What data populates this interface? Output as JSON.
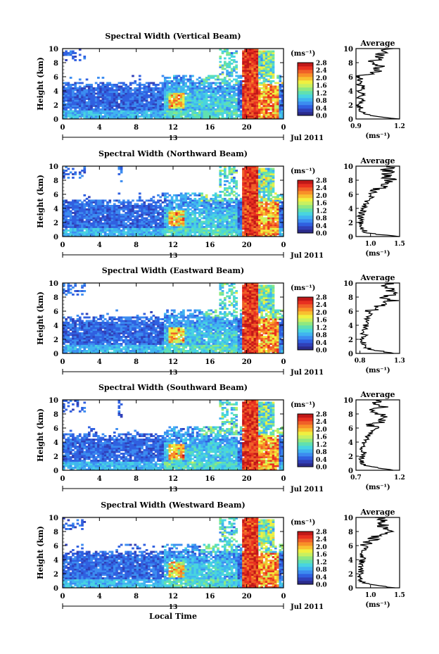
{
  "page": {
    "xlabel": "Local Time",
    "date_label": "Jul 2011",
    "day_label": "13",
    "colorbar_unit": "(ms⁻¹)",
    "avg_title": "Average",
    "avg_xlabel": "(ms⁻¹)"
  },
  "colormap": [
    "#2b2b8a",
    "#3040b8",
    "#3060e0",
    "#3c8cf0",
    "#40b4f0",
    "#48d4e0",
    "#60e0b0",
    "#90e880",
    "#c8f060",
    "#f0f040",
    "#f8c030",
    "#f89028",
    "#f06028",
    "#e83020",
    "#c01818"
  ],
  "chart_data": [
    {
      "type": "heatmap",
      "title": "Spectral Width (Vertical Beam)",
      "xlabel": "",
      "ylabel": "Height (km)",
      "x_ticks": [
        "0",
        "4",
        "8",
        "12",
        "16",
        "20",
        "0"
      ],
      "xlim": [
        0,
        24
      ],
      "ylim": [
        0,
        10
      ],
      "y_ticks": [
        "0",
        "2",
        "4",
        "6",
        "8",
        "10"
      ],
      "colorbar": {
        "ticks": [
          "2.8",
          "2.4",
          "2.0",
          "1.6",
          "1.2",
          "0.8",
          "0.4",
          "0.0"
        ],
        "range": [
          0.0,
          2.8
        ]
      },
      "average_profile": {
        "xlim": [
          0.9,
          1.2
        ],
        "x_ticks": [
          "0.9",
          "1.2"
        ],
        "heights": [
          0,
          0.5,
          1,
          1.5,
          2,
          2.5,
          3,
          3.5,
          4,
          4.5,
          5,
          5.5,
          6,
          6.5,
          7,
          7.5,
          8,
          8.5,
          9,
          9.5,
          10
        ],
        "values": [
          1.2,
          1.0,
          0.94,
          0.93,
          0.92,
          0.95,
          0.92,
          0.95,
          0.93,
          0.96,
          0.92,
          0.93,
          0.92,
          1.0,
          1.05,
          1.1,
          0.98,
          1.08,
          1.05,
          1.1,
          1.12
        ]
      }
    },
    {
      "type": "heatmap",
      "title": "Spectral Width (Northward Beam)",
      "xlabel": "",
      "ylabel": "Height (km)",
      "x_ticks": [
        "0",
        "4",
        "8",
        "12",
        "16",
        "20",
        "0"
      ],
      "xlim": [
        0,
        24
      ],
      "ylim": [
        0,
        10
      ],
      "y_ticks": [
        "0",
        "2",
        "4",
        "6",
        "8",
        "10"
      ],
      "colorbar": {
        "ticks": [
          "2.8",
          "2.4",
          "2.0",
          "1.6",
          "1.2",
          "0.8",
          "0.4",
          "0.0"
        ],
        "range": [
          0.0,
          2.8
        ]
      },
      "average_profile": {
        "xlim": [
          0.75,
          1.5
        ],
        "x_ticks": [
          "1.0",
          "1.5"
        ],
        "heights": [
          0,
          0.5,
          1,
          1.5,
          2,
          2.5,
          3,
          3.5,
          4,
          4.5,
          5,
          5.5,
          6,
          6.5,
          7,
          7.5,
          8,
          8.5,
          9,
          9.5,
          10
        ],
        "values": [
          1.45,
          0.95,
          0.85,
          0.82,
          0.82,
          0.84,
          0.83,
          0.86,
          0.88,
          0.92,
          0.95,
          1.0,
          1.05,
          1.1,
          1.2,
          1.3,
          1.35,
          1.25,
          1.3,
          1.28,
          1.3
        ]
      }
    },
    {
      "type": "heatmap",
      "title": "Spectral Width (Eastward Beam)",
      "xlabel": "",
      "ylabel": "Height (km)",
      "x_ticks": [
        "0",
        "4",
        "8",
        "12",
        "16",
        "20",
        "0"
      ],
      "xlim": [
        0,
        24
      ],
      "ylim": [
        0,
        10
      ],
      "y_ticks": [
        "0",
        "2",
        "4",
        "6",
        "8",
        "10"
      ],
      "colorbar": {
        "ticks": [
          "2.8",
          "2.4",
          "2.0",
          "1.6",
          "1.2",
          "0.8",
          "0.4",
          "0.0"
        ],
        "range": [
          0.0,
          2.8
        ]
      },
      "average_profile": {
        "xlim": [
          0.75,
          1.3
        ],
        "x_ticks": [
          "0.8",
          "1.3"
        ],
        "heights": [
          0,
          0.5,
          1,
          1.5,
          2,
          2.5,
          3,
          3.5,
          4,
          4.5,
          5,
          5.5,
          6,
          6.5,
          7,
          7.5,
          8,
          8.5,
          9,
          9.5,
          10
        ],
        "values": [
          1.25,
          0.95,
          0.85,
          0.84,
          0.83,
          0.86,
          0.84,
          0.88,
          0.87,
          0.9,
          0.88,
          0.92,
          0.9,
          1.0,
          1.15,
          1.2,
          1.1,
          1.22,
          1.18,
          1.1,
          1.15
        ]
      }
    },
    {
      "type": "heatmap",
      "title": "Spectral Width (Southward Beam)",
      "xlabel": "",
      "ylabel": "Height (km)",
      "x_ticks": [
        "0",
        "4",
        "8",
        "12",
        "16",
        "20",
        "0"
      ],
      "xlim": [
        0,
        24
      ],
      "ylim": [
        0,
        10
      ],
      "y_ticks": [
        "0",
        "2",
        "4",
        "6",
        "8",
        "10"
      ],
      "colorbar": {
        "ticks": [
          "2.8",
          "2.4",
          "2.0",
          "1.6",
          "1.2",
          "0.8",
          "0.4",
          "0.0"
        ],
        "range": [
          0.0,
          2.8
        ]
      },
      "average_profile": {
        "xlim": [
          0.7,
          1.2
        ],
        "x_ticks": [
          "0.7",
          "1.2"
        ],
        "heights": [
          0,
          0.5,
          1,
          1.5,
          2,
          2.5,
          3,
          3.5,
          4,
          4.5,
          5,
          5.5,
          6,
          6.5,
          7,
          7.5,
          8,
          8.5,
          9,
          9.5,
          10
        ],
        "values": [
          1.15,
          0.85,
          0.78,
          0.76,
          0.77,
          0.79,
          0.78,
          0.8,
          0.79,
          0.82,
          0.84,
          0.9,
          0.95,
          0.88,
          1.0,
          1.1,
          0.98,
          0.92,
          1.0,
          0.95,
          0.98
        ]
      }
    },
    {
      "type": "heatmap",
      "title": "Spectral Width (Westward Beam)",
      "xlabel": "Local Time",
      "ylabel": "Height (km)",
      "x_ticks": [
        "0",
        "4",
        "8",
        "12",
        "16",
        "20",
        "0"
      ],
      "xlim": [
        0,
        24
      ],
      "ylim": [
        0,
        10
      ],
      "y_ticks": [
        "0",
        "2",
        "4",
        "6",
        "8",
        "10"
      ],
      "colorbar": {
        "ticks": [
          "2.8",
          "2.4",
          "2.0",
          "1.6",
          "1.2",
          "0.8",
          "0.4",
          "0.0"
        ],
        "range": [
          0.0,
          2.8
        ]
      },
      "average_profile": {
        "xlim": [
          0.75,
          1.5
        ],
        "x_ticks": [
          "1.0",
          "1.5"
        ],
        "heights": [
          0,
          0.5,
          1,
          1.5,
          2,
          2.5,
          3,
          3.5,
          4,
          4.5,
          5,
          5.5,
          6,
          6.5,
          7,
          7.5,
          8,
          8.5,
          9,
          9.5,
          10
        ],
        "values": [
          1.4,
          0.95,
          0.85,
          0.83,
          0.82,
          0.84,
          0.83,
          0.86,
          0.85,
          0.88,
          0.87,
          0.9,
          0.92,
          0.95,
          1.05,
          1.15,
          1.3,
          1.2,
          1.25,
          1.15,
          1.2
        ]
      }
    }
  ]
}
